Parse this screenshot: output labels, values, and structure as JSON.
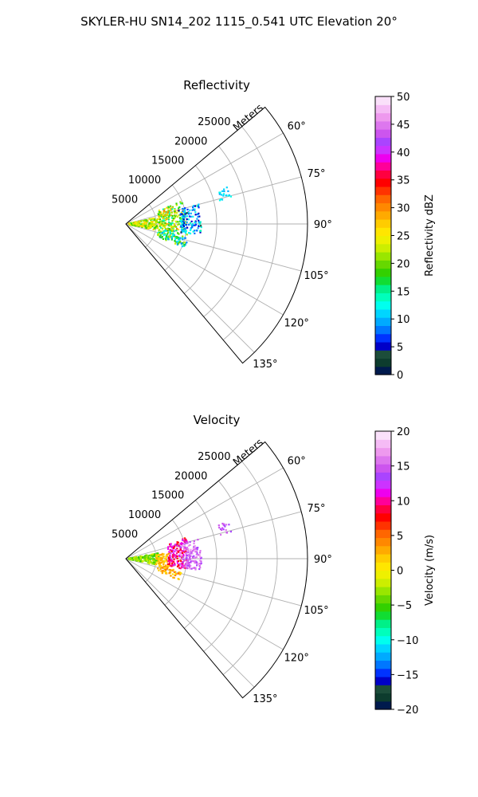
{
  "figure": {
    "title": "SKYLER-HU  SN14_202  1115_0.541 UTC Elevation 20°"
  },
  "chart_data": [
    {
      "type": "scatter",
      "subtype": "polar-sector (PPI radar scan)",
      "title": "Reflectivity",
      "r_axis_label": "Meters",
      "r_ticks": [
        5000,
        10000,
        15000,
        20000,
        25000
      ],
      "r_tick_labels": [
        "5000",
        "10000",
        "15000",
        "20000",
        "25000"
      ],
      "r_max": 30000,
      "theta_range_deg": [
        50,
        140
      ],
      "theta_ticks": [
        60,
        75,
        90,
        105,
        120,
        135
      ],
      "theta_tick_labels": [
        "60°",
        "75°",
        "90°",
        "105°",
        "120°",
        "135°"
      ],
      "grid": true,
      "colorbar": {
        "label": "Reflectivity dBZ",
        "range": [
          0,
          50
        ],
        "ticks": [
          0,
          5,
          10,
          15,
          20,
          25,
          30,
          35,
          40,
          45,
          50
        ],
        "tick_labels": [
          "0",
          "5",
          "10",
          "15",
          "20",
          "25",
          "30",
          "35",
          "40",
          "45",
          "50"
        ],
        "colors": [
          "#001a4d",
          "#0d3c2e",
          "#1c4d3a",
          "#0000c8",
          "#0033ff",
          "#0077ff",
          "#00aaff",
          "#00d5ff",
          "#00ffee",
          "#00ffbb",
          "#00f088",
          "#11dd33",
          "#33d000",
          "#66d800",
          "#99e600",
          "#ccee00",
          "#eef000",
          "#ffe600",
          "#ffcc00",
          "#ffaa00",
          "#ff8800",
          "#ff6600",
          "#ff3300",
          "#ff0000",
          "#ff0040",
          "#ff0099",
          "#ee00ee",
          "#cc33ff",
          "#aa44ff",
          "#cc55ee",
          "#dd77ee",
          "#ee99ee",
          "#f5bbf5",
          "#fae0fa"
        ]
      },
      "echo_regions": [
        {
          "r_range": [
            500,
            5500
          ],
          "theta_range": [
            78,
            102
          ],
          "value_range": [
            17,
            28
          ]
        },
        {
          "r_range": [
            5500,
            10000
          ],
          "theta_range": [
            68,
            98
          ],
          "value_range": [
            13,
            30
          ]
        },
        {
          "r_range": [
            5500,
            10500
          ],
          "theta_range": [
            98,
            112
          ],
          "value_range": [
            8,
            24
          ]
        },
        {
          "r_range": [
            9000,
            12500
          ],
          "theta_range": [
            75,
            99
          ],
          "value_range": [
            4,
            14
          ]
        },
        {
          "r_range": [
            16000,
            18000
          ],
          "theta_range": [
            70,
            76
          ],
          "value_range": [
            10,
            13
          ]
        }
      ]
    },
    {
      "type": "scatter",
      "subtype": "polar-sector (PPI radar scan)",
      "title": "Velocity",
      "r_axis_label": "Meters",
      "r_ticks": [
        5000,
        10000,
        15000,
        20000,
        25000
      ],
      "r_tick_labels": [
        "5000",
        "10000",
        "15000",
        "20000",
        "25000"
      ],
      "r_max": 30000,
      "theta_range_deg": [
        50,
        140
      ],
      "theta_ticks": [
        60,
        75,
        90,
        105,
        120,
        135
      ],
      "theta_tick_labels": [
        "60°",
        "75°",
        "90°",
        "105°",
        "120°",
        "135°"
      ],
      "grid": true,
      "colorbar": {
        "label": "Velocity (m/s)",
        "range": [
          -20,
          20
        ],
        "ticks": [
          -20,
          -15,
          -10,
          -5,
          0,
          5,
          10,
          15,
          20
        ],
        "tick_labels": [
          "−20",
          "−15",
          "−10",
          "−5",
          "0",
          "5",
          "10",
          "15",
          "20"
        ],
        "colors": [
          "#001a4d",
          "#0d3c2e",
          "#1c4d3a",
          "#0000c8",
          "#0033ff",
          "#0077ff",
          "#00aaff",
          "#00d5ff",
          "#00ffee",
          "#00ffbb",
          "#00f088",
          "#11dd33",
          "#33d000",
          "#66d800",
          "#99e600",
          "#ccee00",
          "#eef000",
          "#ffe600",
          "#ffcc00",
          "#ffaa00",
          "#ff8800",
          "#ff6600",
          "#ff3300",
          "#ff0000",
          "#ff0040",
          "#ff0099",
          "#ee00ee",
          "#cc33ff",
          "#aa44ff",
          "#cc55ee",
          "#dd77ee",
          "#ee99ee",
          "#f5bbf5",
          "#fae0fa"
        ]
      },
      "echo_regions": [
        {
          "r_range": [
            500,
            5500
          ],
          "theta_range": [
            80,
            102
          ],
          "value_range": [
            -6,
            -1
          ]
        },
        {
          "r_range": [
            5000,
            7500
          ],
          "theta_range": [
            82,
            104
          ],
          "value_range": [
            0,
            4
          ]
        },
        {
          "r_range": [
            7000,
            10500
          ],
          "theta_range": [
            70,
            100
          ],
          "value_range": [
            7,
            13
          ]
        },
        {
          "r_range": [
            5500,
            9500
          ],
          "theta_range": [
            103,
            112
          ],
          "value_range": [
            1,
            5
          ]
        },
        {
          "r_range": [
            9000,
            12500
          ],
          "theta_range": [
            75,
            99
          ],
          "value_range": [
            13,
            17
          ]
        },
        {
          "r_range": [
            16000,
            18000
          ],
          "theta_range": [
            70,
            76
          ],
          "value_range": [
            12,
            16
          ]
        }
      ]
    }
  ]
}
